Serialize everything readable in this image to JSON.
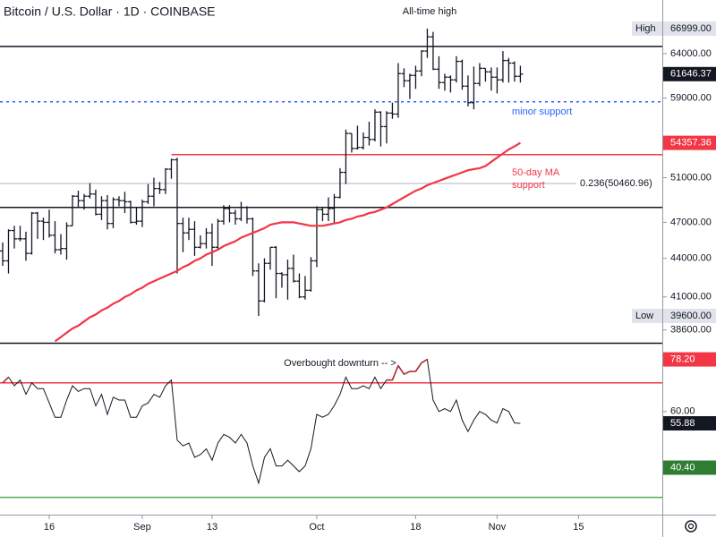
{
  "chart_data": [
    {
      "type": "ohlc",
      "title": "Bitcoin / U.S. Dollar · 1D · COINBASE",
      "log_scale": true,
      "xlim": [
        -0.46,
        113.4
      ],
      "ylim": [
        37700,
        70600
      ],
      "yticks": [
        {
          "value": 64000,
          "label": "64000.00"
        },
        {
          "value": 59000,
          "label": "59000.00"
        },
        {
          "value": 51000,
          "label": "51000.00"
        },
        {
          "value": 47000,
          "label": "47000.00"
        },
        {
          "value": 44000,
          "label": "44000.00"
        },
        {
          "value": 41000,
          "label": "41000.00"
        },
        {
          "value": 38600,
          "label": "38600.00"
        }
      ],
      "color": "#131722",
      "open": [
        44600,
        43800,
        46300,
        45600,
        45600,
        44400,
        47800,
        47100,
        47000,
        45900,
        44700,
        44800,
        46700,
        49300,
        48900,
        49300,
        49500,
        47700,
        48900,
        46900,
        49000,
        48900,
        48800,
        47000,
        47100,
        48800,
        49300,
        50000,
        49900,
        51800,
        52700,
        46900,
        46100,
        46400,
        44900,
        45200,
        46100,
        44900,
        47100,
        48200,
        47800,
        47300,
        48300,
        47300,
        43000,
        40700,
        43600,
        44900,
        42800,
        42700,
        43200,
        42200,
        41000,
        41500,
        43800,
        48100,
        47700,
        48200,
        49200,
        51500,
        55300,
        53800,
        53900,
        54900,
        54700,
        57500,
        56000,
        57400,
        57300,
        61700,
        60900,
        61500,
        62000,
        64300,
        66000,
        62200,
        60700,
        61300,
        61000,
        63100,
        60300,
        58500,
        60600,
        62300,
        61900,
        61300,
        61000,
        63200,
        62900,
        61400
      ],
      "high": [
        45300,
        46400,
        46700,
        46700,
        46200,
        47900,
        47900,
        47400,
        48100,
        47100,
        46000,
        47000,
        49400,
        49800,
        49500,
        50500,
        49900,
        49300,
        49400,
        49200,
        49300,
        49700,
        48900,
        48300,
        49000,
        50400,
        51000,
        50600,
        51900,
        52800,
        52900,
        47400,
        47400,
        47100,
        45900,
        46500,
        46900,
        47300,
        48500,
        48500,
        48100,
        48800,
        48400,
        47400,
        43600,
        44000,
        44900,
        45000,
        42900,
        43900,
        44300,
        42800,
        42600,
        44100,
        48400,
        48300,
        49200,
        49500,
        51900,
        55700,
        55300,
        56100,
        55400,
        56500,
        57800,
        57600,
        57600,
        58500,
        62900,
        62300,
        61700,
        62600,
        64400,
        66999,
        66600,
        63700,
        61700,
        61500,
        63700,
        63300,
        61500,
        62500,
        62900,
        62300,
        62400,
        62400,
        64300,
        63500,
        63100,
        62600
      ],
      "low": [
        43400,
        42800,
        44800,
        45400,
        43800,
        44300,
        45600,
        45500,
        45700,
        44400,
        44300,
        43900,
        46700,
        48300,
        48100,
        49100,
        47600,
        47200,
        46400,
        46500,
        48400,
        47800,
        46900,
        46800,
        46600,
        48600,
        48400,
        49500,
        49500,
        50900,
        42800,
        44500,
        45500,
        44200,
        44800,
        44800,
        43400,
        44700,
        46800,
        47000,
        46800,
        47100,
        46900,
        42600,
        39600,
        40600,
        43100,
        40900,
        41700,
        40800,
        42100,
        40900,
        40800,
        41400,
        43300,
        47100,
        47100,
        46900,
        49100,
        50400,
        53400,
        53700,
        53700,
        54100,
        54500,
        54000,
        54300,
        56800,
        56900,
        60200,
        58900,
        60000,
        61400,
        63500,
        62100,
        60000,
        59800,
        59600,
        60700,
        59900,
        58100,
        57800,
        60300,
        60800,
        59800,
        59500,
        60700,
        60700,
        60800,
        60700
      ],
      "close": [
        43800,
        46300,
        45600,
        45600,
        44400,
        47800,
        47100,
        47000,
        45900,
        44700,
        44800,
        46700,
        49300,
        48900,
        49300,
        49500,
        47700,
        48900,
        46900,
        49000,
        48900,
        48800,
        47000,
        47100,
        48800,
        49300,
        50000,
        49900,
        51800,
        52700,
        46900,
        46100,
        46400,
        44900,
        45200,
        46100,
        44900,
        47100,
        48200,
        47800,
        47300,
        48300,
        47300,
        43000,
        40700,
        43600,
        44900,
        42800,
        42700,
        43200,
        42200,
        41000,
        41500,
        43800,
        48100,
        47700,
        48200,
        49200,
        51500,
        55300,
        53800,
        53900,
        54900,
        54700,
        57500,
        56000,
        57400,
        57300,
        61700,
        60900,
        61500,
        62000,
        64300,
        66000,
        62200,
        60700,
        61300,
        61000,
        63100,
        60300,
        58500,
        60600,
        62300,
        61900,
        61300,
        61000,
        63200,
        62900,
        61400,
        61646.37
      ],
      "ma": {
        "color": "#f23645",
        "values": [
          null,
          null,
          null,
          null,
          null,
          null,
          null,
          null,
          null,
          37800,
          38100,
          38400,
          38700,
          38900,
          39200,
          39500,
          39700,
          40000,
          40200,
          40500,
          40700,
          41000,
          41200,
          41500,
          41700,
          42000,
          42200,
          42400,
          42600,
          42800,
          43000,
          43300,
          43500,
          43800,
          44000,
          44300,
          44500,
          44700,
          45000,
          45200,
          45400,
          45700,
          45900,
          46100,
          46300,
          46500,
          46800,
          46900,
          47000,
          47000,
          47000,
          46900,
          46800,
          46700,
          46700,
          46700,
          46800,
          46900,
          47000,
          47200,
          47300,
          47500,
          47600,
          47800,
          47900,
          48100,
          48300,
          48600,
          48900,
          49200,
          49500,
          49800,
          50000,
          50300,
          50500,
          50700,
          50900,
          51100,
          51300,
          51500,
          51700,
          51800,
          51900,
          52100,
          52500,
          52900,
          53300,
          53700,
          54000,
          54357.36
        ]
      },
      "levels": [
        {
          "value": 64850,
          "color": "#131722"
        },
        {
          "value": 48300,
          "color": "#131722"
        },
        {
          "value": 58600,
          "color": "#2962ff",
          "dashed": true
        },
        {
          "value": 53200,
          "color": "#f23645",
          "x_start": 29
        },
        {
          "value": 50460.96,
          "color": "#b2b5be",
          "label": "0.236(50460.96)"
        }
      ],
      "markers": [
        {
          "tag": "High",
          "value": 66999,
          "label": "66999.00",
          "bg": "#e0e3eb",
          "fg": "#131722"
        },
        {
          "value": 61646.37,
          "bg": "#131722",
          "fg": "#ffffff"
        },
        {
          "value": 54357.36,
          "bg": "#f23645",
          "fg": "#ffffff"
        },
        {
          "tag": "Low",
          "value": 39600,
          "label": "39600.00",
          "bg": "#e0e3eb",
          "fg": "#131722"
        }
      ],
      "annotations": [
        {
          "text": "All-time high",
          "color": "#131722"
        },
        {
          "text": "minor support",
          "color": "#2962ff"
        },
        {
          "text": "50-day MA",
          "color": "#f23645"
        },
        {
          "text": "support",
          "color": "#f23645"
        }
      ]
    },
    {
      "type": "line",
      "annotation": "Overbought downturn -- >",
      "xlim": [
        -0.46,
        113.4
      ],
      "ylim": [
        24,
        84
      ],
      "yticks": [
        {
          "value": 60,
          "label": "60.00"
        }
      ],
      "xticks": [
        {
          "value": 8,
          "label": "16"
        },
        {
          "value": 24,
          "label": "Sep"
        },
        {
          "value": 36,
          "label": "13"
        },
        {
          "value": 54,
          "label": "Oct"
        },
        {
          "value": 71,
          "label": "18"
        },
        {
          "value": 85,
          "label": "Nov"
        },
        {
          "value": 99,
          "label": "15"
        }
      ],
      "color": "#131722",
      "overbought_color": "#b22833",
      "values": [
        70,
        72,
        69,
        71,
        66,
        70,
        68,
        68,
        63,
        58,
        58,
        64,
        69,
        67,
        68,
        68,
        62,
        66,
        59,
        65,
        64,
        64,
        58,
        58,
        62,
        63,
        66,
        65,
        69,
        71,
        50,
        48,
        49,
        44,
        45,
        47,
        43,
        49,
        52,
        51,
        49,
        52,
        49,
        41,
        35,
        44,
        47,
        41,
        41,
        43,
        41,
        39,
        41,
        47,
        59,
        58,
        59,
        62,
        66,
        72,
        68,
        68,
        69,
        68,
        72,
        68,
        71,
        71,
        76,
        73,
        74,
        74,
        77,
        78.2,
        64,
        60,
        61,
        60,
        64,
        57,
        53,
        57,
        60,
        59,
        57,
        56,
        61,
        60,
        56,
        55.88
      ],
      "levels": [
        {
          "value": 70,
          "color": "#f23645"
        },
        {
          "value": 30,
          "color": "#4caf50"
        }
      ],
      "markers": [
        {
          "value": 78.2,
          "label": "78.20",
          "bg": "#f23645",
          "fg": "#ffffff"
        },
        {
          "value": 55.88,
          "bg": "#131722",
          "fg": "#ffffff"
        },
        {
          "value": 40.4,
          "label": "40.40",
          "bg": "#2e7d32",
          "fg": "#ffffff"
        }
      ]
    }
  ]
}
